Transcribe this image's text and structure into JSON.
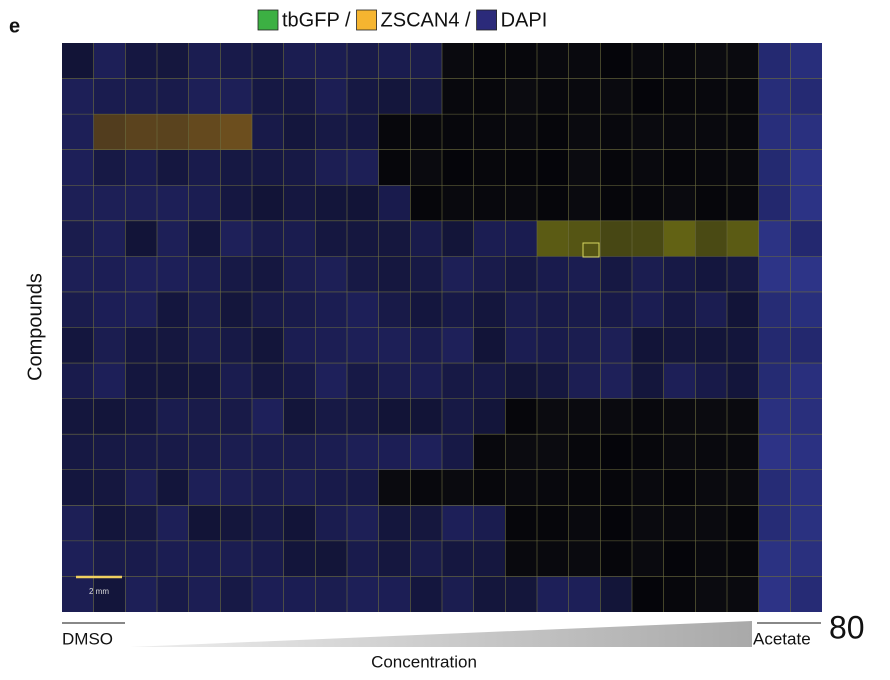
{
  "panel_label": "e",
  "legend": [
    {
      "label": "tbGFP /",
      "color": "#3cb043"
    },
    {
      "label": "ZSCAN4 /",
      "color": "#f6b530"
    },
    {
      "label": "DAPI",
      "color": "#2b2a7a"
    }
  ],
  "y_axis_label": "Compounds",
  "scale_bar": "2 mm",
  "x_labels": {
    "left": "DMSO",
    "right": "Acetate",
    "axis": "Concentration"
  },
  "page_number": "80"
}
